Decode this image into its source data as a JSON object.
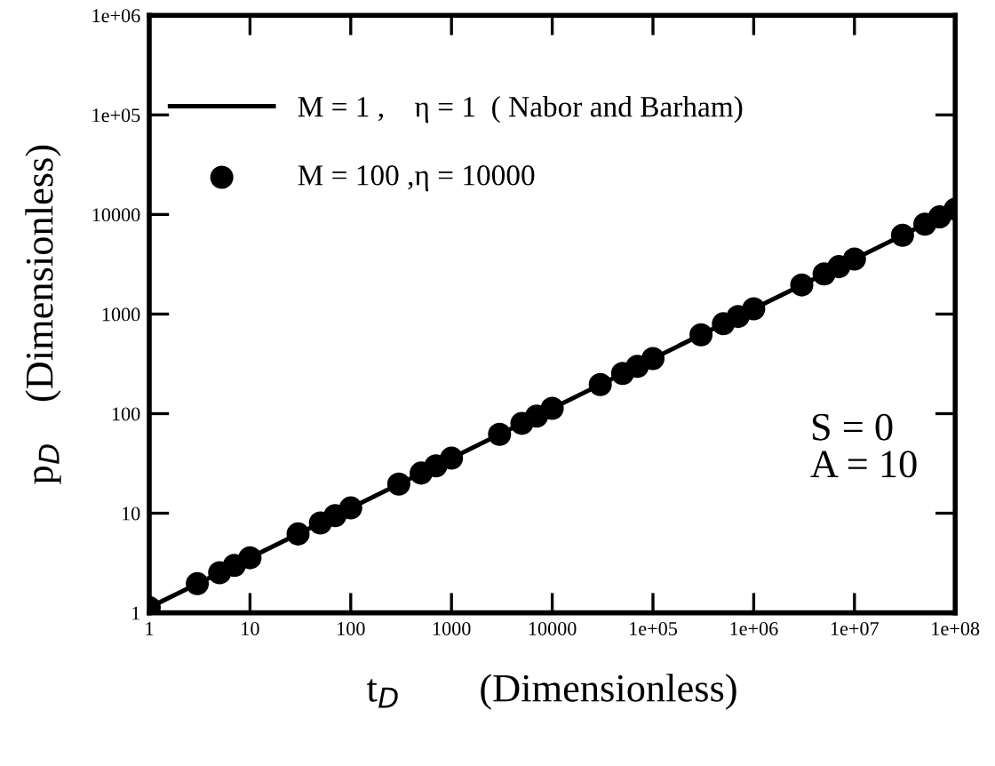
{
  "chart_data": {
    "type": "line",
    "xlabel": "t$_{D}$        (Dimensionless)",
    "ylabel": "p$_{D}$    (Dimensionless)",
    "log": "xy",
    "xlim": [
      1,
      100000000
    ],
    "ylim": [
      1,
      1000000
    ],
    "xticks": [
      1,
      10,
      100,
      1000,
      10000,
      {
        "value": 100000,
        "label": "1e+05"
      },
      {
        "value": 1000000,
        "label": "1e+06"
      },
      {
        "value": 10000000,
        "label": "1e+07"
      },
      {
        "value": 100000000,
        "label": "1e+08"
      }
    ],
    "yticks": [
      1,
      10,
      100,
      1000,
      10000,
      {
        "value": 100000,
        "label": "1e+05"
      },
      {
        "value": 1000000,
        "label": "1e+06"
      }
    ],
    "grid": false,
    "legend": "top left",
    "annotations": [
      "S = 0",
      "A = 10"
    ],
    "series": [
      {
        "name": "M = 1 ,    η = 1  ( Nabor and Barham)",
        "color": "#000000",
        "marker": "none",
        "line_style": "solid",
        "x": [
          1,
          100000000
        ],
        "values": [
          1.13,
          11300
        ]
      },
      {
        "name": "M = 100 ,η = 10000",
        "type": "scatter",
        "color": "#000000",
        "marker": "circle",
        "x": [
          1,
          3,
          5,
          7,
          10,
          30,
          50,
          70,
          100,
          300,
          500,
          700,
          1000,
          3000,
          5000,
          7000,
          10000,
          30000,
          50000,
          70000,
          100000,
          300000,
          500000,
          700000,
          1000000,
          3000000,
          5000000,
          7000000,
          10000000,
          30000000,
          50000000,
          70000000,
          100000000
        ],
        "values": [
          1.13,
          1.96,
          2.53,
          2.99,
          3.57,
          6.19,
          7.99,
          9.45,
          11.3,
          19.6,
          25.3,
          29.9,
          35.7,
          61.9,
          79.9,
          94.5,
          113,
          196,
          253,
          299,
          357,
          619,
          799,
          945,
          1130,
          1960,
          2530,
          2990,
          3570,
          6190,
          7990,
          9450,
          11300
        ]
      }
    ]
  }
}
